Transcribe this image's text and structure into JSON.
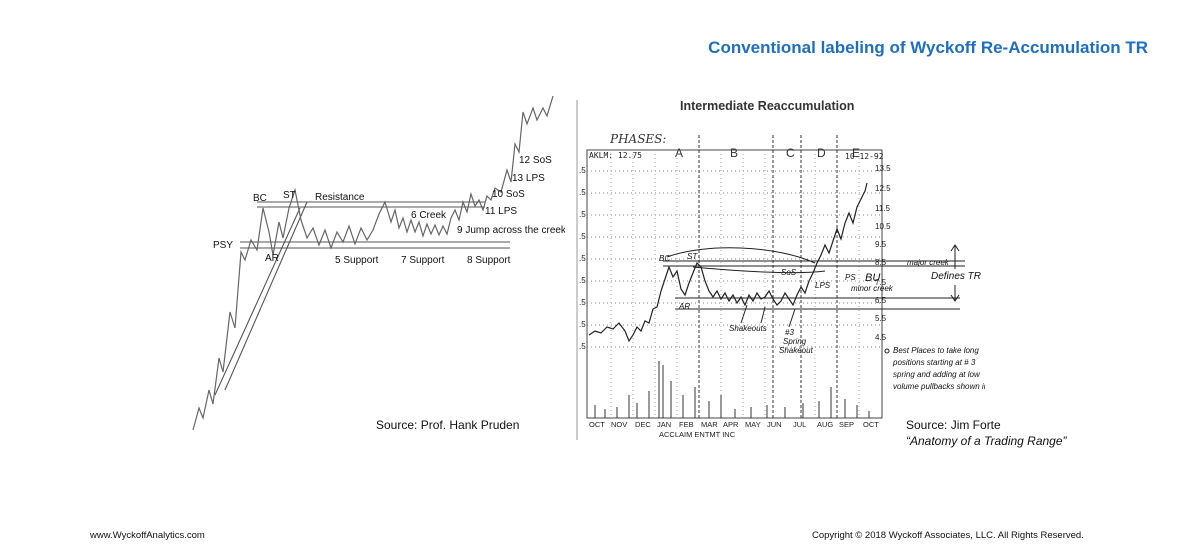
{
  "header": {
    "title": "Conventional labeling of Wyckoff Re-Accumulation TR"
  },
  "left_diagram": {
    "labels": {
      "psy": "PSY",
      "bc": "BC",
      "st": "ST",
      "ar": "AR",
      "resistance": "Resistance",
      "creek6": "6 Creek",
      "support5": "5 Support",
      "support7": "7 Support",
      "support8": "8 Support",
      "jump9": "9 Jump across the creek",
      "sos10": "10 SoS",
      "lps11": "11 LPS",
      "sos12": "12 SoS",
      "lps13": "13 LPS"
    },
    "source": "Source: Prof. Hank Pruden"
  },
  "right_chart": {
    "title": "Intermediate Reaccumulation",
    "phases_label": "PHASES:",
    "phases": [
      "A",
      "B",
      "C",
      "D",
      "E"
    ],
    "ticker": "AKLM: 12.75",
    "date": "10-12-92",
    "y_ticks": [
      "13.5",
      "12.5",
      "11.5",
      "10.5",
      "9.5",
      "8.5",
      "7.5",
      "6.5",
      "5.5",
      "4.5"
    ],
    "left_ticks": [
      ".5",
      ".5",
      ".5",
      ".5",
      ".5",
      ".5",
      ".5",
      ".5",
      ".5"
    ],
    "months": [
      "OCT",
      "NOV",
      "DEC",
      "JAN",
      "FEB",
      "MAR",
      "APR",
      "MAY",
      "JUN",
      "JUL",
      "AUG",
      "SEP",
      "OCT"
    ],
    "company": "ACCLAIM ENTMT INC",
    "annotations": {
      "bc": "BC",
      "st": "ST",
      "ar": "AR",
      "sos": "SoS",
      "lps": "LPS",
      "ps": "PS",
      "bu": "BU",
      "major_creek": "major creek",
      "minor_creek": "minor creek",
      "defines_tr": "Defines TR",
      "shakeouts": "Shakeouts",
      "spring_num": "#3",
      "spring": "Spring",
      "shakeout": "Shakeout",
      "note": [
        "Best Places to take long",
        "positions starting at # 3",
        "spring and adding at low",
        "volume pullbacks shown in red"
      ]
    },
    "source_line1": "Source: Jim Forte",
    "source_line2": "“Anatomy of a Trading Range”"
  },
  "footer": {
    "website": "www.WyckoffAnalytics.com",
    "copyright": "Copyright © 2018 Wyckoff Associates, LLC. All Rights Reserved."
  }
}
